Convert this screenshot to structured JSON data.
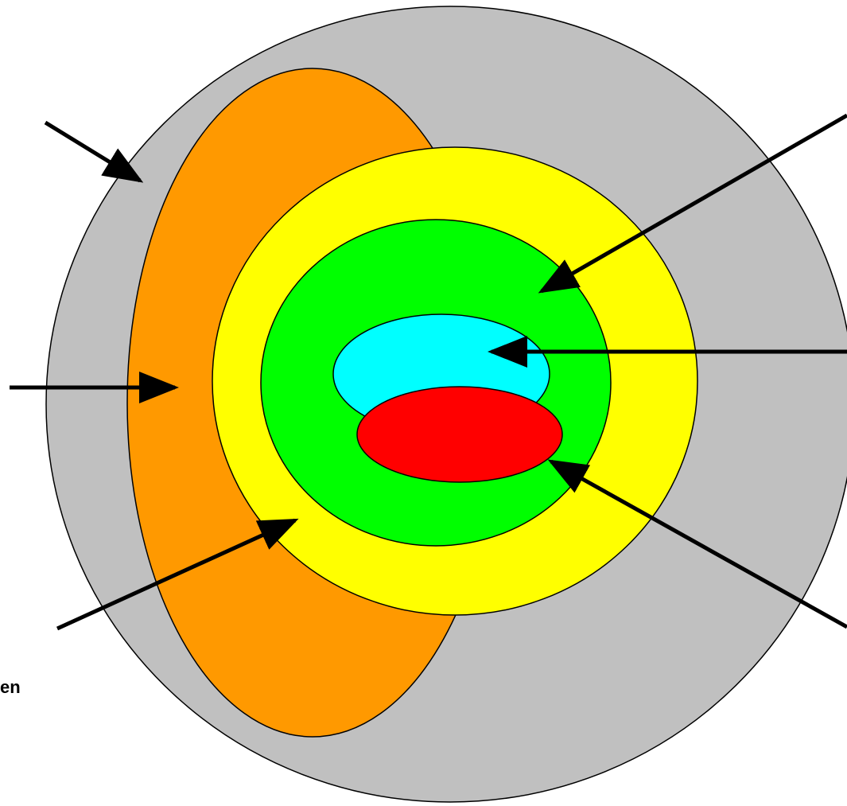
{
  "diagram": {
    "colors": {
      "background": "#ffffff",
      "outer_circle": "#c0c0c0",
      "orange_ellipse": "#ff9900",
      "yellow_circle": "#ffff00",
      "green_circle": "#00ff00",
      "cyan_ellipse": "#00ffff",
      "red_ellipse": "#ff0000",
      "outline": "#000000",
      "arrow": "#000000"
    },
    "labels": {
      "partial_text": "en"
    }
  }
}
